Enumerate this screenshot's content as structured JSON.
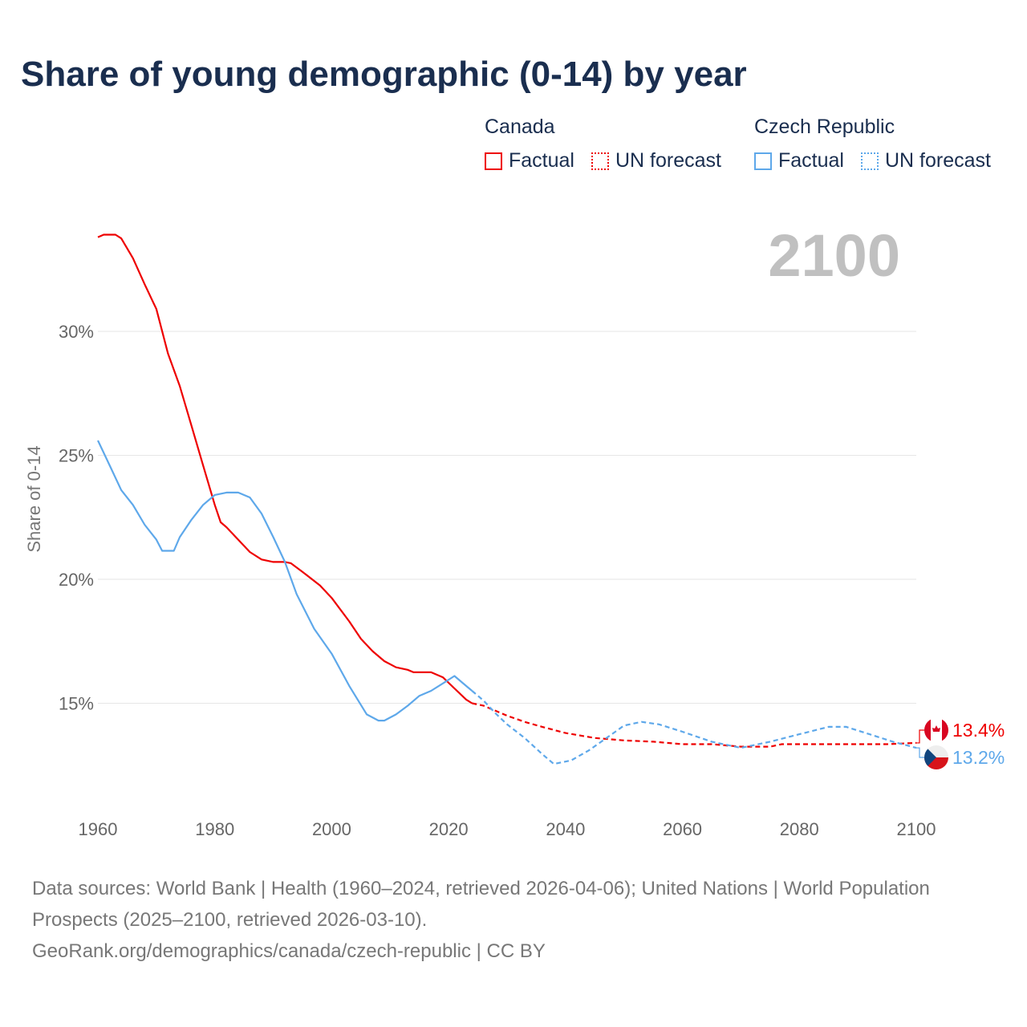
{
  "title": "Share of young demographic (0-14) by year",
  "legend": {
    "groups": [
      {
        "name": "Canada",
        "color": "#ee0000",
        "factual": "Factual",
        "forecast": "UN forecast"
      },
      {
        "name": "Czech Republic",
        "color": "#5ea8ea",
        "factual": "Factual",
        "forecast": "UN forecast"
      }
    ]
  },
  "current_year": "2100",
  "footer": {
    "line1": "Data sources: World Bank | Health (1960–2024, retrieved 2026-04-06); United Nations | World Population Prospects (2025–2100, retrieved 2026-03-10).",
    "line2": "GeoRank.org/demographics/canada/czech-republic | CC BY"
  },
  "chart_data": {
    "type": "line",
    "title": "Share of young demographic (0-14) by year",
    "xlabel": "",
    "ylabel": "Share of 0-14",
    "xlim": [
      1960,
      2100
    ],
    "ylim": [
      11.2,
      34.5
    ],
    "x_ticks": [
      "1960",
      "1980",
      "2000",
      "2020",
      "2040",
      "2060",
      "2080",
      "2100"
    ],
    "y_ticks": [
      {
        "v": 15,
        "label": "15%"
      },
      {
        "v": 20,
        "label": "20%"
      },
      {
        "v": 25,
        "label": "25%"
      },
      {
        "v": 30,
        "label": "30%"
      }
    ],
    "grid": true,
    "series": [
      {
        "name": "Canada",
        "color": "#ee0000",
        "end_label": "13.4%",
        "factual": [
          [
            1960,
            33.8
          ],
          [
            1961,
            33.9
          ],
          [
            1963,
            33.9
          ],
          [
            1964,
            33.75
          ],
          [
            1966,
            32.95
          ],
          [
            1968,
            31.9
          ],
          [
            1970,
            30.9
          ],
          [
            1972,
            29.1
          ],
          [
            1974,
            27.8
          ],
          [
            1976,
            26.2
          ],
          [
            1978,
            24.6
          ],
          [
            1980,
            23.0
          ],
          [
            1981,
            22.3
          ],
          [
            1982,
            22.1
          ],
          [
            1984,
            21.6
          ],
          [
            1986,
            21.1
          ],
          [
            1988,
            20.8
          ],
          [
            1990,
            20.7
          ],
          [
            1992,
            20.7
          ],
          [
            1993,
            20.65
          ],
          [
            1995,
            20.3
          ],
          [
            1998,
            19.75
          ],
          [
            2000,
            19.25
          ],
          [
            2003,
            18.3
          ],
          [
            2005,
            17.6
          ],
          [
            2007,
            17.1
          ],
          [
            2009,
            16.7
          ],
          [
            2011,
            16.45
          ],
          [
            2013,
            16.35
          ],
          [
            2014,
            16.25
          ],
          [
            2017,
            16.25
          ],
          [
            2019,
            16.05
          ],
          [
            2021,
            15.6
          ],
          [
            2023,
            15.15
          ],
          [
            2024,
            15.0
          ]
        ],
        "forecast": [
          [
            2024,
            15.0
          ],
          [
            2026,
            14.9
          ],
          [
            2028,
            14.7
          ],
          [
            2030,
            14.5
          ],
          [
            2033,
            14.25
          ],
          [
            2036,
            14.05
          ],
          [
            2040,
            13.8
          ],
          [
            2045,
            13.6
          ],
          [
            2050,
            13.5
          ],
          [
            2055,
            13.45
          ],
          [
            2060,
            13.35
          ],
          [
            2065,
            13.35
          ],
          [
            2070,
            13.25
          ],
          [
            2075,
            13.25
          ],
          [
            2077,
            13.35
          ],
          [
            2090,
            13.35
          ],
          [
            2095,
            13.35
          ],
          [
            2100,
            13.4
          ]
        ]
      },
      {
        "name": "Czech Republic",
        "color": "#5ea8ea",
        "end_label": "13.2%",
        "factual": [
          [
            1960,
            25.6
          ],
          [
            1962,
            24.6
          ],
          [
            1964,
            23.6
          ],
          [
            1966,
            23.0
          ],
          [
            1968,
            22.2
          ],
          [
            1970,
            21.6
          ],
          [
            1971,
            21.15
          ],
          [
            1973,
            21.15
          ],
          [
            1974,
            21.7
          ],
          [
            1976,
            22.4
          ],
          [
            1978,
            23.0
          ],
          [
            1980,
            23.4
          ],
          [
            1982,
            23.5
          ],
          [
            1984,
            23.5
          ],
          [
            1986,
            23.3
          ],
          [
            1988,
            22.65
          ],
          [
            1990,
            21.7
          ],
          [
            1992,
            20.7
          ],
          [
            1994,
            19.4
          ],
          [
            1997,
            18.0
          ],
          [
            2000,
            17.0
          ],
          [
            2003,
            15.7
          ],
          [
            2006,
            14.55
          ],
          [
            2008,
            14.3
          ],
          [
            2009,
            14.3
          ],
          [
            2011,
            14.55
          ],
          [
            2013,
            14.9
          ],
          [
            2015,
            15.3
          ],
          [
            2017,
            15.5
          ],
          [
            2019,
            15.8
          ],
          [
            2021,
            16.1
          ],
          [
            2023,
            15.7
          ],
          [
            2024,
            15.5
          ]
        ],
        "forecast": [
          [
            2024,
            15.5
          ],
          [
            2026,
            15.1
          ],
          [
            2028,
            14.6
          ],
          [
            2030,
            14.15
          ],
          [
            2033,
            13.6
          ],
          [
            2036,
            12.95
          ],
          [
            2038,
            12.55
          ],
          [
            2041,
            12.7
          ],
          [
            2044,
            13.1
          ],
          [
            2047,
            13.6
          ],
          [
            2050,
            14.1
          ],
          [
            2053,
            14.25
          ],
          [
            2056,
            14.15
          ],
          [
            2060,
            13.85
          ],
          [
            2065,
            13.45
          ],
          [
            2070,
            13.2
          ],
          [
            2075,
            13.45
          ],
          [
            2080,
            13.75
          ],
          [
            2085,
            14.05
          ],
          [
            2088,
            14.05
          ],
          [
            2092,
            13.75
          ],
          [
            2096,
            13.45
          ],
          [
            2100,
            13.2
          ]
        ]
      }
    ]
  }
}
